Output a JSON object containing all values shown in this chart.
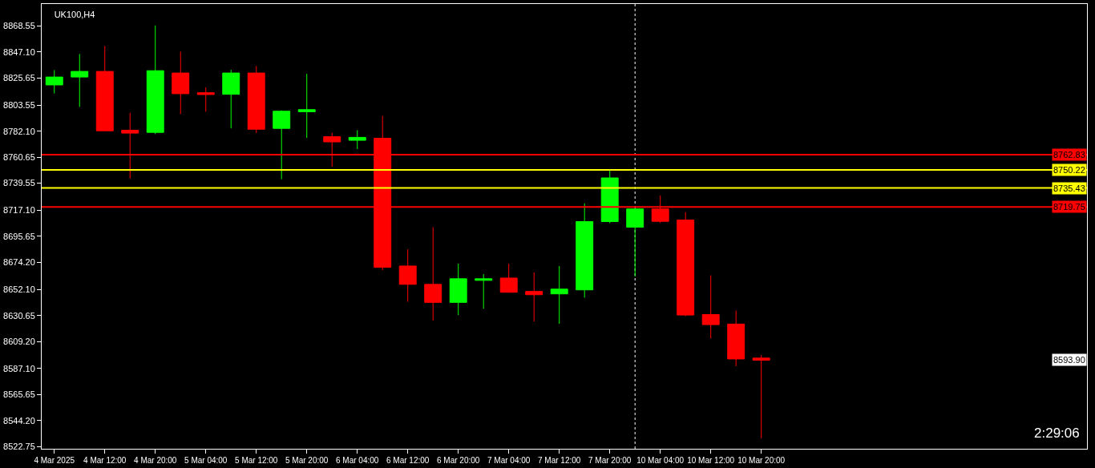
{
  "chart_data": {
    "type": "candlestick",
    "title": "UK100,H4",
    "categories": [
      "4 Mar 2025",
      null,
      "4 Mar 12:00",
      null,
      "4 Mar 20:00",
      null,
      "5 Mar 04:00",
      null,
      "5 Mar 12:00",
      null,
      "5 Mar 20:00",
      null,
      "6 Mar 04:00",
      null,
      "6 Mar 12:00",
      null,
      "6 Mar 20:00",
      null,
      "7 Mar 04:00",
      null,
      "7 Mar 12:00",
      null,
      "7 Mar 20:00",
      null,
      "10 Mar 04:00",
      null,
      "10 Mar 12:00",
      null,
      "10 Mar 20:00"
    ],
    "ohlc": [
      [
        8820.1,
        8832.3,
        8813.1,
        8826.6
      ],
      [
        8826.6,
        8845.5,
        8802.0,
        8831.2
      ],
      [
        8831.2,
        8852.1,
        8782.4,
        8782.4
      ],
      [
        8782.9,
        8797.2,
        8743.2,
        8780.5
      ],
      [
        8781.1,
        8869.0,
        8779.8,
        8831.8
      ],
      [
        8829.9,
        8847.5,
        8796.1,
        8812.9
      ],
      [
        8813.7,
        8818.1,
        8798.1,
        8812.2
      ],
      [
        8812.4,
        8832.5,
        8784.4,
        8829.9
      ],
      [
        8829.9,
        8835.7,
        8780.5,
        8783.7
      ],
      [
        8784.4,
        8799.2,
        8742.6,
        8798.5
      ],
      [
        8798.1,
        8829.2,
        8776.5,
        8799.8
      ],
      [
        8777.6,
        8780.9,
        8753.0,
        8773.3
      ],
      [
        8774.6,
        8782.9,
        8767.4,
        8777.0
      ],
      [
        8776.3,
        8794.6,
        8668.0,
        8670.2
      ],
      [
        8671.3,
        8685.0,
        8641.9,
        8656.2
      ],
      [
        8656.2,
        8703.2,
        8626.4,
        8641.4
      ],
      [
        8641.4,
        8673.2,
        8631.0,
        8660.8
      ],
      [
        8659.5,
        8664.7,
        8636.2,
        8660.8
      ],
      [
        8661.4,
        8673.2,
        8649.3,
        8649.7
      ],
      [
        8650.4,
        8666.0,
        8625.7,
        8647.7
      ],
      [
        8648.4,
        8671.3,
        8623.8,
        8652.3
      ],
      [
        8651.7,
        8722.8,
        8645.3,
        8707.8
      ],
      [
        8707.8,
        8749.6,
        8706.5,
        8743.7
      ],
      [
        8703.2,
        8718.6,
        8662.7,
        8718.2
      ],
      [
        8718.2,
        8729.3,
        8706.7,
        8708.0
      ],
      [
        8709.1,
        8715.6,
        8630.1,
        8631.0
      ],
      [
        8631.4,
        8663.6,
        8611.8,
        8623.1
      ],
      [
        8623.6,
        8634.7,
        8589.0,
        8594.9
      ],
      [
        8595.6,
        8598.2,
        8529.6,
        8593.9
      ]
    ],
    "colors": [
      "#00ff00",
      "#00ff00",
      "#ff0000",
      "#ff0000",
      "#00ff00",
      "#ff0000",
      "#ff0000",
      "#00ff00",
      "#ff0000",
      "#00ff00",
      "#00ff00",
      "#ff0000",
      "#00ff00",
      "#ff0000",
      "#ff0000",
      "#ff0000",
      "#00ff00",
      "#00ff00",
      "#ff0000",
      "#ff0000",
      "#00ff00",
      "#00ff00",
      "#00ff00",
      "#00ff00",
      "#ff0000",
      "#ff0000",
      "#ff0000",
      "#ff0000",
      "#ff0000"
    ],
    "ylim": [
      8521.1,
      8886.6
    ],
    "yticks": [
      {
        "value": 8868.55,
        "label": "8868.55"
      },
      {
        "value": 8847.1,
        "label": "8847.10"
      },
      {
        "value": 8825.65,
        "label": "8825.65"
      },
      {
        "value": 8803.55,
        "label": "8803.55"
      },
      {
        "value": 8782.1,
        "label": "8782.10"
      },
      {
        "value": 8760.65,
        "label": "8760.65"
      },
      {
        "value": 8739.55,
        "label": "8739.55"
      },
      {
        "value": 8717.1,
        "label": "8717.10"
      },
      {
        "value": 8695.65,
        "label": "8695.65"
      },
      {
        "value": 8674.2,
        "label": "8674.20"
      },
      {
        "value": 8652.1,
        "label": "8652.10"
      },
      {
        "value": 8630.65,
        "label": "8630.65"
      },
      {
        "value": 8609.2,
        "label": "8609.20"
      },
      {
        "value": 8587.1,
        "label": "8587.10"
      },
      {
        "value": 8565.65,
        "label": "8565.65"
      },
      {
        "value": 8544.2,
        "label": "8544.20"
      },
      {
        "value": 8522.75,
        "label": "8522.75"
      }
    ],
    "ref_lines": [
      {
        "axis": "y",
        "value": 8762.83,
        "label": "8762.83",
        "color": "#ff0000"
      },
      {
        "axis": "y",
        "value": 8750.22,
        "label": "8750.22",
        "color": "#ffff00"
      },
      {
        "axis": "y",
        "value": 8735.43,
        "label": "8735.43",
        "color": "#ffff00"
      },
      {
        "axis": "y",
        "value": 8719.75,
        "label": "8719.75",
        "color": "#ff0000"
      }
    ],
    "annotations": [
      "8593.90",
      "2:29:06"
    ]
  }
}
